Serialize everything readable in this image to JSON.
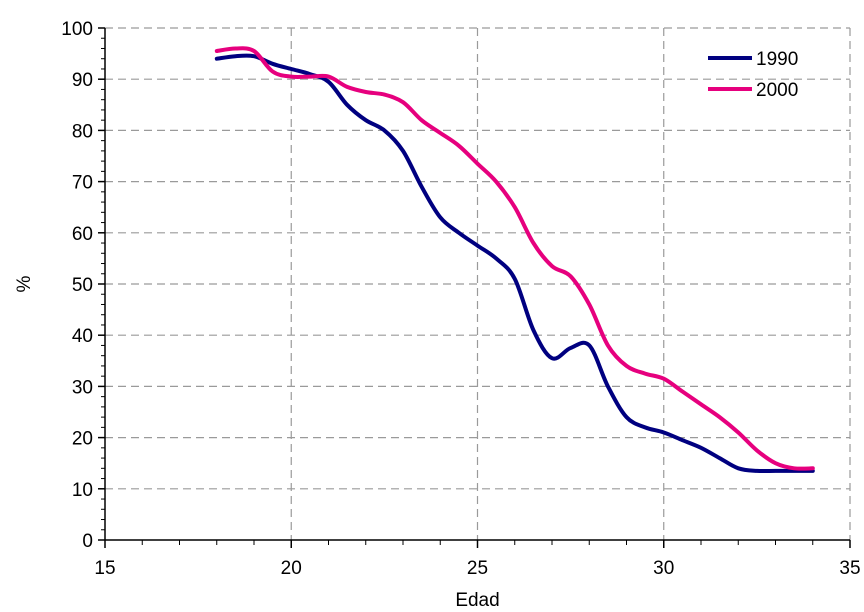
{
  "chart_data": {
    "type": "line",
    "title": "",
    "xlabel": "Edad",
    "ylabel": "%",
    "xlim": [
      15,
      35
    ],
    "ylim": [
      0,
      100
    ],
    "x_ticks": [
      15,
      20,
      25,
      30,
      35
    ],
    "y_ticks": [
      0,
      10,
      20,
      30,
      40,
      50,
      60,
      70,
      80,
      90,
      100
    ],
    "x_ticks_labels": [
      "15",
      "20",
      "25",
      "30",
      "35"
    ],
    "y_ticks_labels": [
      "0",
      "10",
      "20",
      "30",
      "40",
      "50",
      "60",
      "70",
      "80",
      "90",
      "100"
    ],
    "grid": true,
    "legend": "top-right",
    "series": [
      {
        "name": "1990",
        "color": "#000080",
        "x": [
          18,
          18.5,
          19,
          19.5,
          20,
          20.5,
          21,
          21.5,
          22,
          22.5,
          23,
          23.5,
          24,
          24.5,
          25,
          25.5,
          26,
          26.5,
          27,
          27.5,
          28,
          28.5,
          29,
          29.5,
          30,
          30.5,
          31,
          31.5,
          32,
          32.5,
          33,
          33.5,
          34
        ],
        "values": [
          94,
          94.5,
          94.5,
          93,
          92,
          91,
          89.5,
          85,
          82,
          80,
          76,
          69,
          63,
          60,
          57.5,
          55,
          51,
          41,
          35.5,
          37.5,
          38,
          30,
          24,
          22,
          21,
          19.5,
          18,
          16,
          14,
          13.5,
          13.5,
          13.5,
          13.5
        ]
      },
      {
        "name": "2000",
        "color": "#E6007E",
        "x": [
          18,
          18.5,
          19,
          19.5,
          20,
          20.5,
          21,
          21.5,
          22,
          22.5,
          23,
          23.5,
          24,
          24.5,
          25,
          25.5,
          26,
          26.5,
          27,
          27.5,
          28,
          28.5,
          29,
          29.5,
          30,
          30.5,
          31,
          31.5,
          32,
          32.5,
          33,
          33.5,
          34
        ],
        "values": [
          95.5,
          96,
          95.5,
          91.5,
          90.5,
          90.5,
          90.5,
          88.5,
          87.5,
          87,
          85.5,
          82,
          79.5,
          77,
          73.5,
          70,
          65,
          58,
          53.5,
          51.5,
          46,
          38,
          34,
          32.5,
          31.5,
          29,
          26.5,
          24,
          21,
          17.5,
          15,
          14,
          14
        ]
      }
    ]
  }
}
